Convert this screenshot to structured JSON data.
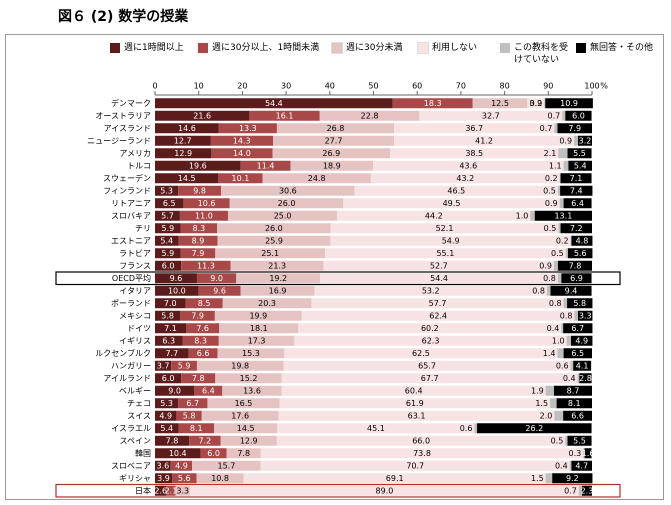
{
  "chart_data": {
    "type": "stacked-barh",
    "title": "図６ (2) 数学の授業",
    "x_unit": "%",
    "categories": [
      "デンマーク",
      "オーストラリア",
      "アイスランド",
      "ニュージーランド",
      "アメリカ",
      "トルコ",
      "スウェーデン",
      "フィンランド",
      "リトアニア",
      "スロバキア",
      "チリ",
      "エストニア",
      "ラトビア",
      "フランス",
      "OECD平均",
      "イタリア",
      "ポーランド",
      "メキシコ",
      "ドイツ",
      "イギリス",
      "ルクセンブルク",
      "ハンガリー",
      "アイルランド",
      "ベルギー",
      "チェコ",
      "スイス",
      "イスラエル",
      "スペイン",
      "韓国",
      "スロベニア",
      "ギリシャ",
      "日本"
    ],
    "highlight": [
      14,
      31
    ],
    "xlim": [
      0,
      100
    ],
    "xticks": [
      0,
      10,
      20,
      30,
      40,
      50,
      60,
      70,
      80,
      90,
      100
    ],
    "series": [
      {
        "name": "週に1時間以上",
        "color": "#5c1c1c",
        "label_color": "#ffffff",
        "values": [
          54.4,
          21.6,
          14.6,
          12.7,
          12.9,
          19.6,
          14.5,
          5.3,
          6.5,
          5.7,
          5.9,
          5.4,
          5.9,
          6.0,
          9.6,
          10.0,
          7.0,
          5.8,
          7.1,
          6.3,
          7.7,
          3.7,
          6.0,
          9.0,
          5.3,
          4.9,
          5.4,
          7.8,
          10.4,
          3.6,
          3.9,
          2.6
        ],
        "value_labels": [
          "54.4",
          "21.6",
          "14.6",
          "12.7",
          "12.9",
          "19.6",
          "14.5",
          "5.3",
          "6.5",
          "5.7",
          "5.9",
          "5.4",
          "5.9",
          "6.0",
          "9.6",
          "10.0",
          "7.0",
          "5.8",
          "7.1",
          "6.3",
          "7.7",
          "3.7",
          "6.0",
          "9.0",
          "5.3",
          "4.9",
          "5.4",
          "7.8",
          "10.4",
          "3.6",
          "3.9",
          "2.6"
        ]
      },
      {
        "name": "週に30分以上、1時間未満",
        "color": "#a84848",
        "label_color": "#ffffff",
        "values": [
          18.3,
          16.1,
          13.3,
          14.3,
          14.0,
          11.4,
          10.1,
          9.8,
          10.6,
          11.0,
          8.3,
          8.9,
          7.9,
          11.3,
          9.0,
          9.6,
          8.5,
          7.9,
          7.6,
          8.3,
          6.6,
          5.9,
          7.8,
          6.4,
          6.7,
          5.8,
          8.1,
          7.2,
          6.0,
          4.9,
          5.6,
          2.1
        ],
        "value_labels": [
          "18.3",
          "16.1",
          "13.3",
          "14.3",
          "14.0",
          "11.4",
          "10.1",
          "9.8",
          "10.6",
          "11.0",
          "8.3",
          "8.9",
          "7.9",
          "11.3",
          "9.0",
          "9.6",
          "8.5",
          "7.9",
          "7.6",
          "8.3",
          "6.6",
          "5.9",
          "7.8",
          "6.4",
          "6.7",
          "5.8",
          "8.1",
          "7.2",
          "6.0",
          "4.9",
          "5.6",
          "2.1"
        ]
      },
      {
        "name": "週に30分未満",
        "color": "#e6c3c3",
        "label_color": "#000000",
        "values": [
          12.5,
          22.8,
          26.8,
          27.7,
          26.9,
          18.9,
          24.8,
          30.6,
          26.0,
          25.0,
          26.0,
          25.9,
          25.1,
          21.3,
          19.2,
          16.9,
          20.3,
          19.9,
          18.1,
          17.3,
          15.3,
          19.8,
          15.2,
          13.6,
          16.5,
          17.6,
          14.5,
          12.9,
          7.8,
          15.7,
          10.8,
          3.3
        ],
        "value_labels": [
          "12.5",
          "22.8",
          "26.8",
          "27.7",
          "26.9",
          "18.9",
          "24.8",
          "30.6",
          "26.0",
          "25.0",
          "26.0",
          "25.9",
          "25.1",
          "21.3",
          "19.2",
          "16.9",
          "20.3",
          "19.9",
          "18.1",
          "17.3",
          "15.3",
          "19.8",
          "15.2",
          "13.6",
          "16.5",
          "17.6",
          "14.5",
          "12.9",
          "7.8",
          "15.7",
          "10.8",
          "3.3"
        ]
      },
      {
        "name": "利用しない",
        "color": "#f7e3e3",
        "label_color": "#000000",
        "values": [
          3.9,
          32.7,
          36.7,
          41.2,
          38.5,
          43.6,
          43.2,
          46.5,
          49.5,
          44.2,
          52.1,
          54.9,
          55.1,
          52.7,
          54.4,
          53.2,
          57.7,
          62.4,
          60.2,
          62.3,
          62.5,
          65.7,
          67.7,
          60.4,
          61.9,
          63.1,
          45.1,
          66.0,
          73.8,
          70.7,
          69.1,
          89.0
        ],
        "value_labels": [
          "3.9",
          "32.7",
          "36.7",
          "41.2",
          "38.5",
          "43.6",
          "43.2",
          "46.5",
          "49.5",
          "44.2",
          "52.1",
          "54.9",
          "55.1",
          "52.7",
          "54.4",
          "53.2",
          "57.7",
          "62.4",
          "60.2",
          "62.3",
          "62.5",
          "65.7",
          "67.7",
          "60.4",
          "61.9",
          "63.1",
          "45.1",
          "66.0",
          "73.8",
          "70.7",
          "69.1",
          "89.0"
        ]
      },
      {
        "name": "この教科を受けていない",
        "color": "#bfbfbf",
        "label_color": "#000000",
        "values": [
          0.2,
          0.7,
          0.7,
          0.9,
          2.1,
          1.1,
          0.2,
          0.5,
          0.9,
          1.0,
          0.5,
          0.2,
          0.5,
          0.9,
          0.8,
          0.8,
          0.8,
          0.8,
          0.4,
          1.0,
          1.4,
          0.6,
          0.4,
          1.9,
          1.5,
          2.0,
          0.6,
          0.5,
          0.3,
          0.4,
          1.5,
          0.7
        ],
        "value_labels": [
          "0.2",
          "0.7",
          "0.7",
          "0.9",
          "2.1",
          "1.1",
          "0.2",
          "0.5",
          "0.9",
          "1.0",
          "0.5",
          "0.2",
          "0.5",
          "0.9",
          "0.8",
          "0.8",
          "0.8",
          "0.8",
          "0.4",
          "1.0",
          "1.4",
          "0.6",
          "0.4",
          "1.9",
          "1.5",
          "2.0",
          "0.6",
          "0.5",
          "0.3",
          "0.4",
          "1.5",
          "0.7"
        ]
      },
      {
        "name": "無回答・その他",
        "color": "#000000",
        "label_color": "#ffffff",
        "values": [
          10.9,
          6.0,
          7.9,
          3.2,
          5.5,
          5.4,
          7.1,
          7.4,
          6.4,
          13.1,
          7.2,
          4.8,
          5.6,
          7.8,
          6.9,
          9.4,
          5.8,
          3.3,
          6.7,
          4.9,
          6.5,
          4.1,
          2.8,
          8.7,
          8.1,
          6.6,
          26.2,
          5.5,
          1.6,
          4.7,
          9.2,
          2.3
        ],
        "value_labels": [
          "10.9",
          "6.0",
          "7.9",
          "3.2",
          "5.5",
          "5.4",
          "7.1",
          "7.4",
          "6.4",
          "13.1",
          "7.2",
          "4.8",
          "5.6",
          "7.8",
          "6.9",
          "9.4",
          "5.8",
          "3.3",
          "6.7",
          "4.9",
          "6.5",
          "4.1",
          "2.8",
          "8.7",
          "8.1",
          "6.6",
          "26.2",
          "5.5",
          "1.6",
          "4.7",
          "9.2",
          "2.3"
        ]
      }
    ]
  }
}
